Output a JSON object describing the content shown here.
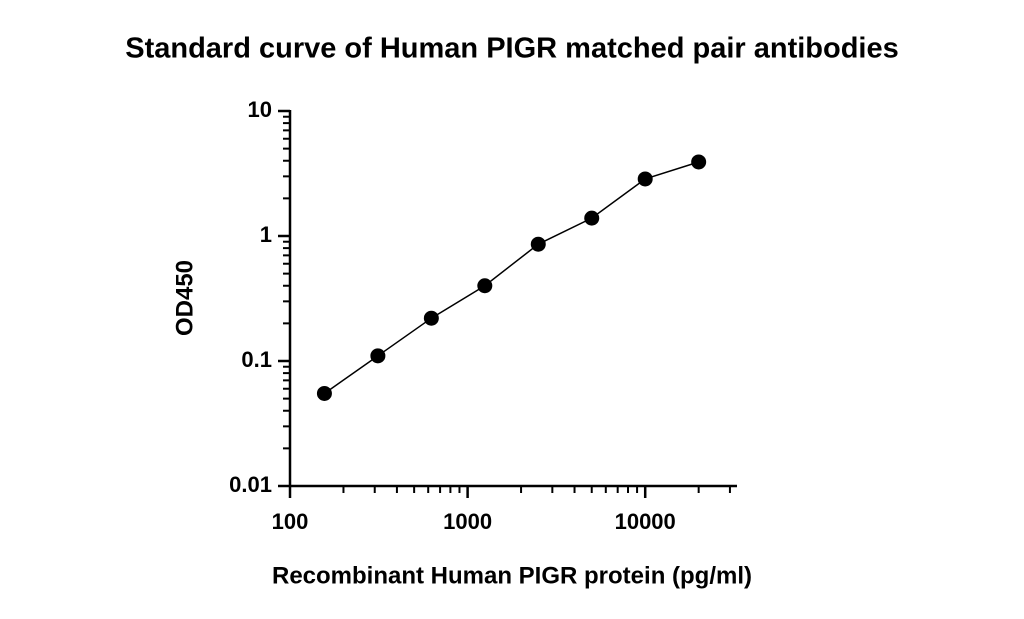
{
  "chart_data": {
    "type": "scatter",
    "title": "Standard curve of Human PIGR matched pair antibodies",
    "x_label": "Recombinant Human PIGR protein (pg/ml)",
    "y_label": "OD450",
    "x_scale": "log",
    "y_scale": "log",
    "color": "#000000",
    "fit_line": true,
    "minor_ticks": true,
    "x": [
      156.25,
      312.5,
      625,
      1250,
      2500,
      5000,
      10000,
      20000
    ],
    "values": [
      0.055,
      0.11,
      0.22,
      0.4,
      0.86,
      1.39,
      2.86,
      3.91
    ],
    "xlim": [
      100,
      32000
    ],
    "ylim": [
      0.01,
      10
    ],
    "xticks": [
      100,
      1000,
      10000
    ],
    "yticks": [
      0.01,
      0.1,
      1,
      10
    ]
  }
}
